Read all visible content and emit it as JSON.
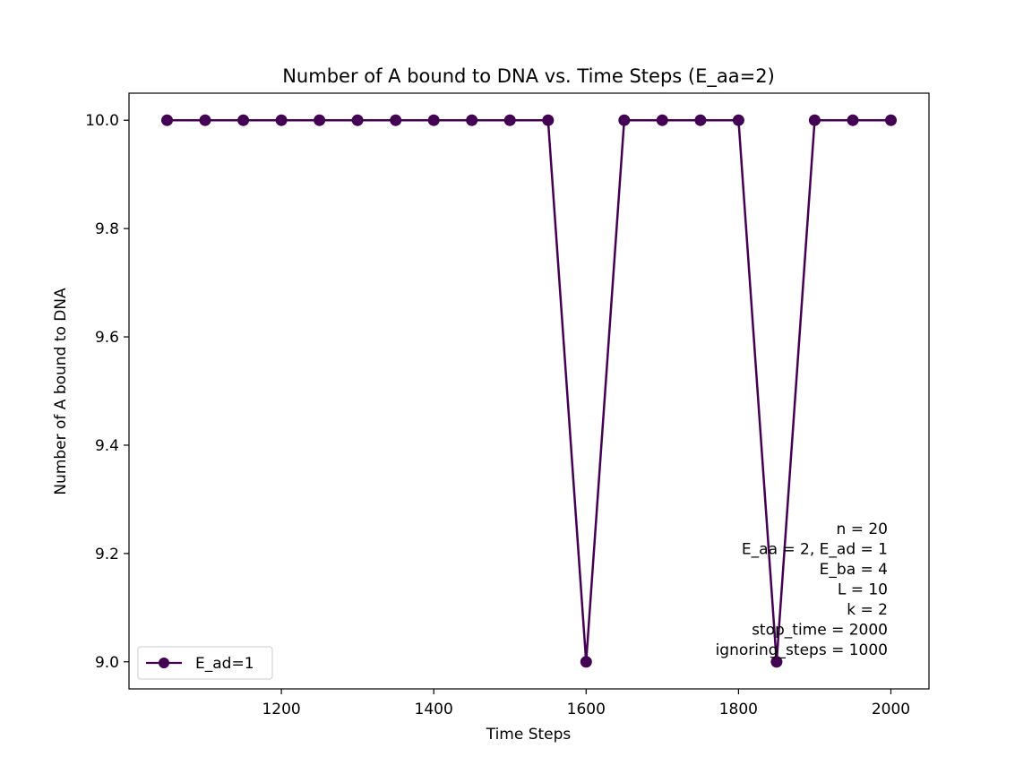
{
  "chart_data": {
    "type": "line",
    "title": "Number of A bound to DNA vs. Time Steps (E_aa=2)",
    "xlabel": "Time Steps",
    "ylabel": "Number of A bound to DNA",
    "xlim": [
      1000,
      2050
    ],
    "ylim": [
      8.95,
      10.05
    ],
    "xticks": [
      1200,
      1400,
      1600,
      1800,
      2000
    ],
    "yticks": [
      9.0,
      9.2,
      9.4,
      9.6,
      9.8,
      10.0
    ],
    "ytick_labels": [
      "9.0",
      "9.2",
      "9.4",
      "9.6",
      "9.8",
      "10.0"
    ],
    "grid": false,
    "legend_position": "lower-left",
    "series": [
      {
        "name": "E_ad=1",
        "color": "#440154",
        "marker": "circle",
        "x": [
          1050,
          1100,
          1150,
          1200,
          1250,
          1300,
          1350,
          1400,
          1450,
          1500,
          1550,
          1600,
          1650,
          1700,
          1750,
          1800,
          1850,
          1900,
          1950,
          2000
        ],
        "y": [
          10,
          10,
          10,
          10,
          10,
          10,
          10,
          10,
          10,
          10,
          10,
          9,
          10,
          10,
          10,
          10,
          9,
          10,
          10,
          10
        ]
      }
    ],
    "annotations": [
      "n = 20",
      "E_aa = 2, E_ad = 1",
      "E_ba = 4",
      "L = 10",
      "k = 2",
      "stop_time = 2000",
      "ignoring_steps = 1000"
    ]
  }
}
